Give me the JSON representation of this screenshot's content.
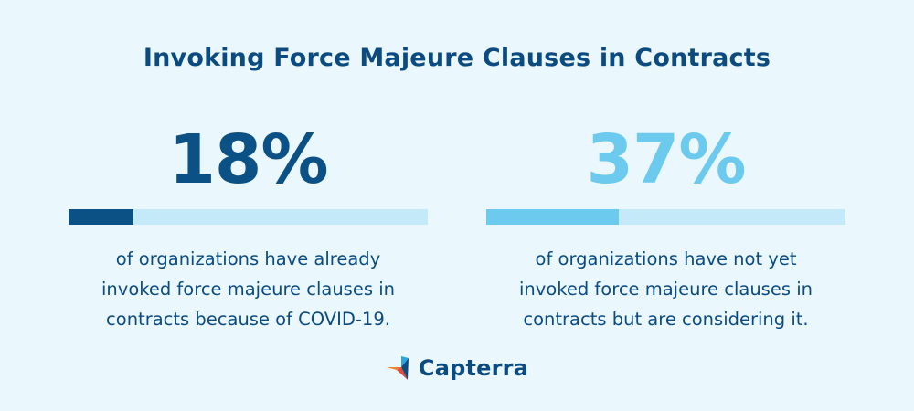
{
  "title": "Invoking Force Majeure Clauses in Contracts",
  "chart_data": {
    "type": "bar",
    "stats": [
      {
        "value_label": "18%",
        "value": 18,
        "color": "#0b5186",
        "track_color": "#c4e9f8",
        "description_lines": [
          "of organizations have already",
          "invoked force majeure clauses in",
          "contracts because of COVID-19."
        ]
      },
      {
        "value_label": "37%",
        "value": 37,
        "color": "#6ccaee",
        "track_color": "#c4e9f8",
        "description_lines": [
          "of organizations have not yet",
          "invoked force majeure clauses in",
          "contracts but are considering it."
        ]
      }
    ]
  },
  "logo": {
    "text": "Capterra",
    "icon": "capterra-logo-icon"
  }
}
